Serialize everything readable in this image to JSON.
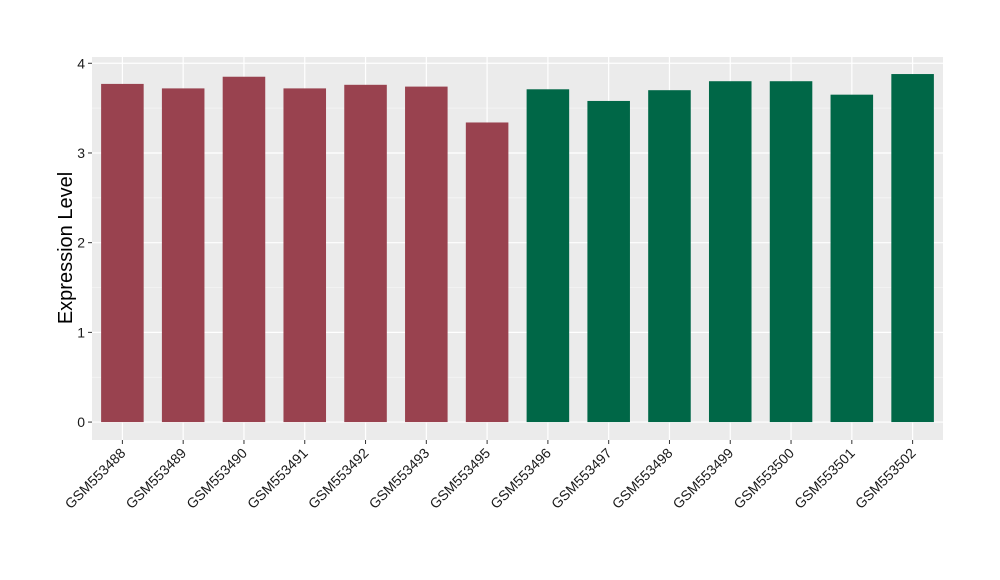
{
  "chart_data": {
    "type": "bar",
    "title": "",
    "xlabel": "",
    "ylabel": "Expression Level",
    "ylim": [
      -0.2,
      4.07
    ],
    "yticks": [
      0,
      1,
      2,
      3,
      4
    ],
    "grid": true,
    "panel_background": "#EBEBEB",
    "categories": [
      "GSM553488",
      "GSM553489",
      "GSM553490",
      "GSM553491",
      "GSM553492",
      "GSM553493",
      "GSM553495",
      "GSM553496",
      "GSM553497",
      "GSM553498",
      "GSM553499",
      "GSM553500",
      "GSM553501",
      "GSM553502"
    ],
    "values": [
      3.77,
      3.72,
      3.85,
      3.72,
      3.76,
      3.74,
      3.34,
      3.71,
      3.58,
      3.7,
      3.8,
      3.8,
      3.65,
      3.88
    ],
    "groups": [
      "g1",
      "g1",
      "g1",
      "g1",
      "g1",
      "g1",
      "g1",
      "g2",
      "g2",
      "g2",
      "g2",
      "g2",
      "g2",
      "g2"
    ],
    "group_colors": {
      "g1": "#99424F",
      "g2": "#006747"
    }
  }
}
